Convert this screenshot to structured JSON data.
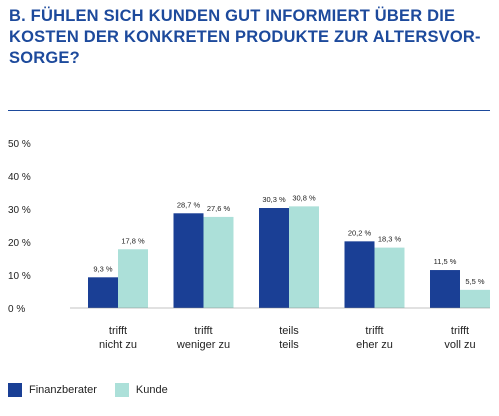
{
  "title_lines": [
    "B. FÜHLEN SICH KUNDEN GUT INFORMIERT ÜBER DIE",
    "KOSTEN DER KONKRETEN PRODUKTE ZUR ALTERSVOR-",
    "SORGE?"
  ],
  "colors": {
    "accent": "#1d4a9c",
    "berater": "#1a3f95",
    "kunde": "#ace0d9"
  },
  "chart_data": {
    "type": "bar",
    "title": "B. FÜHLEN SICH KUNDEN GUT INFORMIERT ÜBER DIE KOSTEN DER KONKRETEN PRODUKTE ZUR ALTERSVORSORGE?",
    "categories": [
      [
        "trifft",
        "nicht zu"
      ],
      [
        "trifft",
        "weniger zu"
      ],
      [
        "teils",
        "teils"
      ],
      [
        "trifft",
        "eher zu"
      ],
      [
        "trifft",
        "voll zu"
      ]
    ],
    "series": [
      {
        "name": "Finanzberater",
        "values": [
          9.3,
          28.7,
          30.3,
          20.2,
          11.5
        ],
        "labels": [
          "9,3 %",
          "28,7 %",
          "30,3 %",
          "20,2 %",
          "11,5 %"
        ]
      },
      {
        "name": "Kunde",
        "values": [
          17.8,
          27.6,
          30.8,
          18.3,
          5.5
        ],
        "labels": [
          "17,8 %",
          "27,6 %",
          "30,8 %",
          "18,3 %",
          "5,5 %"
        ]
      }
    ],
    "ylim": [
      0,
      50
    ],
    "yticks": [
      {
        "value": 0,
        "label": "0 %"
      },
      {
        "value": 10,
        "label": "10 %"
      },
      {
        "value": 20,
        "label": "20 %"
      },
      {
        "value": 30,
        "label": "30 %"
      },
      {
        "value": 40,
        "label": "40 %"
      },
      {
        "value": 50,
        "label": "50 %"
      }
    ],
    "grid": false,
    "legend_position": "bottom-left"
  }
}
